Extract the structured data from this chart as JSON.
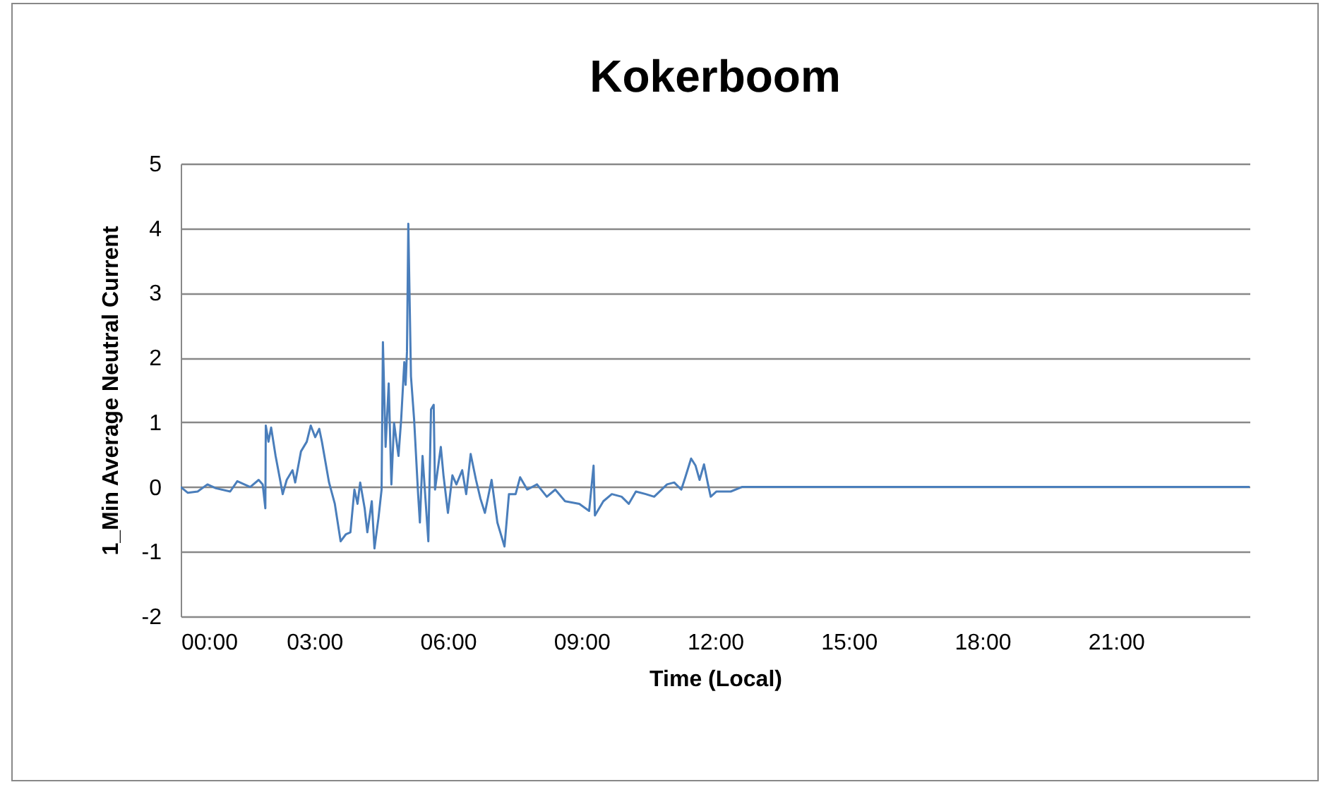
{
  "chart_data": {
    "type": "line",
    "title": "Kokerboom",
    "xlabel": "Time (Local)",
    "ylabel": "1_Min Average Neutral Current",
    "x": [
      0,
      0.16,
      0.38,
      0.6,
      0.79,
      1.11,
      1.27,
      1.56,
      1.75,
      1.84,
      1.9,
      1.91,
      1.97,
      2.03,
      2.13,
      2.22,
      2.29,
      2.38,
      2.51,
      2.57,
      2.7,
      2.83,
      2.92,
      3.02,
      3.11,
      3.17,
      3.33,
      3.46,
      3.59,
      3.71,
      3.81,
      3.9,
      3.97,
      4.03,
      4.13,
      4.19,
      4.29,
      4.35,
      4.44,
      4.51,
      4.54,
      4.6,
      4.67,
      4.73,
      4.79,
      4.89,
      4.95,
      5.02,
      5.05,
      5.08,
      5.11,
      5.17,
      5.24,
      5.33,
      5.37,
      5.43,
      5.56,
      5.62,
      5.68,
      5.71,
      5.84,
      5.9,
      6.0,
      6.1,
      6.19,
      6.32,
      6.41,
      6.51,
      6.63,
      6.73,
      6.83,
      6.98,
      7.11,
      7.27,
      7.37,
      7.52,
      7.62,
      7.78,
      8.0,
      8.22,
      8.41,
      8.63,
      8.95,
      9.17,
      9.27,
      9.3,
      9.49,
      9.68,
      9.9,
      10.06,
      10.22,
      10.44,
      10.63,
      10.92,
      11.08,
      11.24,
      11.33,
      11.46,
      11.56,
      11.65,
      11.75,
      11.84,
      11.9,
      12.03,
      12.35,
      12.6,
      24
    ],
    "series": [
      {
        "color": "#4a7ebb",
        "values": [
          0,
          -0.09,
          -0.07,
          0.04,
          -0.02,
          -0.07,
          0.09,
          0,
          0.11,
          0.04,
          -0.33,
          0.95,
          0.7,
          0.92,
          0.48,
          0.15,
          -0.11,
          0.11,
          0.26,
          0.07,
          0.55,
          0.7,
          0.95,
          0.77,
          0.9,
          0.7,
          0.07,
          -0.26,
          -0.84,
          -0.73,
          -0.7,
          -0.04,
          -0.26,
          0.07,
          -0.33,
          -0.7,
          -0.22,
          -0.95,
          -0.48,
          -0.04,
          2.24,
          0.62,
          1.6,
          0.04,
          0.99,
          0.48,
          1.05,
          1.93,
          1.58,
          2.09,
          4.07,
          1.71,
          1.05,
          -0.11,
          -0.55,
          0.48,
          -0.84,
          1.2,
          1.27,
          -0.04,
          0.62,
          0.18,
          -0.4,
          0.18,
          0.04,
          0.26,
          -0.11,
          0.51,
          0.11,
          -0.18,
          -0.4,
          0.11,
          -0.55,
          -0.92,
          -0.11,
          -0.11,
          0.15,
          -0.04,
          0.04,
          -0.15,
          -0.04,
          -0.22,
          -0.26,
          -0.37,
          0.33,
          -0.44,
          -0.22,
          -0.11,
          -0.15,
          -0.26,
          -0.07,
          -0.11,
          -0.15,
          0.04,
          0.07,
          -0.04,
          0.15,
          0.44,
          0.33,
          0.11,
          0.35,
          0.04,
          -0.15,
          -0.07,
          -0.07,
          0,
          0
        ]
      }
    ],
    "xlim": [
      0,
      24
    ],
    "xticks": [
      {
        "value": 0,
        "label": "00:00"
      },
      {
        "value": 3,
        "label": "03:00"
      },
      {
        "value": 6,
        "label": "06:00"
      },
      {
        "value": 9,
        "label": "09:00"
      },
      {
        "value": 12,
        "label": "12:00"
      },
      {
        "value": 15,
        "label": "15:00"
      },
      {
        "value": 18,
        "label": "18:00"
      },
      {
        "value": 21,
        "label": "21:00"
      }
    ],
    "ylim": [
      -2,
      5
    ],
    "yticks": [
      -2,
      -1,
      0,
      1,
      2,
      3,
      4,
      5
    ],
    "grid": "y",
    "marker": "none",
    "line_style": "solid"
  }
}
